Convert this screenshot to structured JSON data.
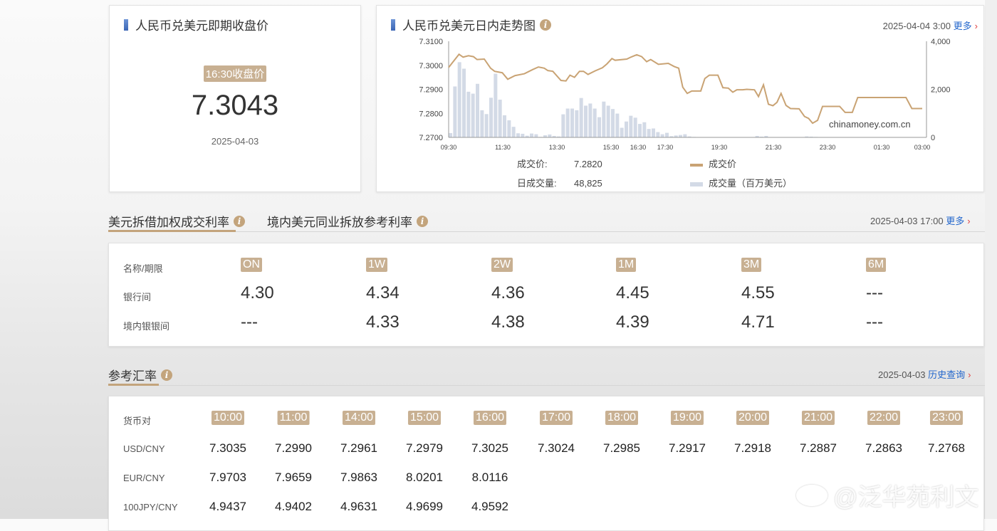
{
  "closing_card": {
    "title": "人民币兑美元即期收盘价",
    "tag": "16:30收盘价",
    "value": "7.3043",
    "date": "2025-04-03"
  },
  "intraday_card": {
    "title": "人民币兑美元日内走势图",
    "timestamp": "2025-04-04 3:00",
    "more": "更多",
    "watermark": "chinamoney.com.cn",
    "price_label": "成交价:",
    "price_value": "7.2820",
    "volume_label": "日成交量:",
    "volume_value": "48,825",
    "legend": [
      {
        "name": "成交价",
        "color": "#c9a374"
      },
      {
        "name": "成交量（百万美元）",
        "color": "#d3dae6"
      }
    ]
  },
  "chart_data": {
    "type": "line+bar",
    "y_left": {
      "ticks": [
        "7.2700",
        "7.2800",
        "7.2900",
        "7.3000",
        "7.3100"
      ],
      "range": [
        7.27,
        7.31
      ]
    },
    "y_right": {
      "ticks": [
        "0",
        "2,000",
        "4,000"
      ],
      "range": [
        0,
        4000
      ]
    },
    "x_ticks": [
      "09:30",
      "11:30",
      "13:30",
      "15:30",
      "16:30",
      "17:30",
      "19:30",
      "21:30",
      "23:30",
      "01:30",
      "03:00"
    ],
    "x_range": [
      "09:30",
      "03:00"
    ],
    "series": [
      {
        "name": "成交价",
        "type": "line",
        "color": "#c9a374",
        "points": [
          [
            "09:30",
            7.2991
          ],
          [
            "09:53",
            7.3046
          ],
          [
            "10:02",
            7.3034
          ],
          [
            "10:14",
            7.304
          ],
          [
            "10:25",
            7.3036
          ],
          [
            "10:33",
            7.3024
          ],
          [
            "10:49",
            7.3026
          ],
          [
            "11:03",
            7.2988
          ],
          [
            "11:12",
            7.2975
          ],
          [
            "11:29",
            7.2969
          ],
          [
            "11:41",
            7.2942
          ],
          [
            "11:57",
            7.2957
          ],
          [
            "12:18",
            7.2965
          ],
          [
            "12:36",
            7.2982
          ],
          [
            "12:49",
            7.2993
          ],
          [
            "13:02",
            7.2988
          ],
          [
            "13:10",
            7.2978
          ],
          [
            "13:21",
            7.2975
          ],
          [
            "13:39",
            7.2937
          ],
          [
            "13:50",
            7.2935
          ],
          [
            "13:59",
            7.2959
          ],
          [
            "14:09",
            7.295
          ],
          [
            "14:20",
            7.2975
          ],
          [
            "14:29",
            7.2975
          ],
          [
            "14:39",
            7.2962
          ],
          [
            "14:55",
            7.2977
          ],
          [
            "15:11",
            7.299
          ],
          [
            "15:21",
            7.3006
          ],
          [
            "15:32",
            7.3028
          ],
          [
            "15:39",
            7.3021
          ],
          [
            "16:05",
            7.3026
          ],
          [
            "16:14",
            7.3034
          ],
          [
            "16:27",
            7.3044
          ],
          [
            "16:38",
            7.3036
          ],
          [
            "16:49",
            7.3015
          ],
          [
            "16:58",
            7.3024
          ],
          [
            "17:15",
            7.3004
          ],
          [
            "17:37",
            7.3008
          ],
          [
            "17:50",
            7.2995
          ],
          [
            "18:00",
            7.2988
          ],
          [
            "18:09",
            7.2909
          ],
          [
            "18:19",
            7.2883
          ],
          [
            "18:29",
            7.2893
          ],
          [
            "18:49",
            7.2893
          ],
          [
            "18:58",
            7.2945
          ],
          [
            "19:08",
            7.2959
          ],
          [
            "19:27",
            7.2959
          ],
          [
            "19:38",
            7.2907
          ],
          [
            "19:50",
            7.2905
          ],
          [
            "20:00",
            7.2888
          ],
          [
            "20:09",
            7.2898
          ],
          [
            "20:22",
            7.2898
          ],
          [
            "20:31",
            7.29
          ],
          [
            "20:48",
            7.2898
          ],
          [
            "20:57",
            7.287
          ],
          [
            "21:08",
            7.2919
          ],
          [
            "21:19",
            7.2838
          ],
          [
            "21:29",
            7.2832
          ],
          [
            "21:38",
            7.2846
          ],
          [
            "21:47",
            7.2883
          ],
          [
            "21:58",
            7.2833
          ],
          [
            "22:08",
            7.282
          ],
          [
            "22:27",
            7.2819
          ],
          [
            "22:39",
            7.2787
          ],
          [
            "22:48",
            7.2779
          ],
          [
            "22:57",
            7.2759
          ],
          [
            "23:08",
            7.2771
          ],
          [
            "23:19",
            7.2829
          ],
          [
            "23:57",
            7.2829
          ],
          [
            "00:09",
            7.2804
          ],
          [
            "00:25",
            7.2804
          ],
          [
            "00:37",
            7.2866
          ],
          [
            "02:24",
            7.2866
          ],
          [
            "02:37",
            7.282
          ],
          [
            "03:00",
            7.282
          ]
        ]
      },
      {
        "name": "成交量（百万美元）",
        "type": "bar",
        "color": "#d3dae6",
        "points": [
          [
            "09:30",
            180
          ],
          [
            "09:40",
            2120
          ],
          [
            "09:50",
            3130
          ],
          [
            "10:00",
            2860
          ],
          [
            "10:10",
            1900
          ],
          [
            "10:20",
            1820
          ],
          [
            "10:30",
            2230
          ],
          [
            "10:40",
            1130
          ],
          [
            "10:50",
            970
          ],
          [
            "11:00",
            1650
          ],
          [
            "11:10",
            2650
          ],
          [
            "11:20",
            1570
          ],
          [
            "11:30",
            920
          ],
          [
            "11:40",
            710
          ],
          [
            "11:50",
            440
          ],
          [
            "12:00",
            170
          ],
          [
            "12:10",
            150
          ],
          [
            "12:20",
            70
          ],
          [
            "12:30",
            160
          ],
          [
            "12:40",
            130
          ],
          [
            "12:50",
            20
          ],
          [
            "13:00",
            90
          ],
          [
            "13:10",
            120
          ],
          [
            "13:20",
            60
          ],
          [
            "13:30",
            40
          ],
          [
            "13:40",
            960
          ],
          [
            "13:50",
            1200
          ],
          [
            "14:00",
            1200
          ],
          [
            "14:10",
            1130
          ],
          [
            "14:20",
            1640
          ],
          [
            "14:30",
            1320
          ],
          [
            "14:40",
            1410
          ],
          [
            "14:50",
            1200
          ],
          [
            "15:00",
            840
          ],
          [
            "15:10",
            1490
          ],
          [
            "15:20",
            1320
          ],
          [
            "15:30",
            1180
          ],
          [
            "15:40",
            990
          ],
          [
            "15:50",
            400
          ],
          [
            "16:00",
            660
          ],
          [
            "16:10",
            900
          ],
          [
            "16:20",
            820
          ],
          [
            "16:30",
            560
          ],
          [
            "16:40",
            630
          ],
          [
            "16:50",
            350
          ],
          [
            "17:00",
            370
          ],
          [
            "17:10",
            220
          ],
          [
            "17:20",
            130
          ],
          [
            "17:30",
            190
          ],
          [
            "17:40",
            50
          ],
          [
            "17:50",
            80
          ],
          [
            "18:00",
            100
          ],
          [
            "18:10",
            130
          ],
          [
            "18:20",
            40
          ],
          [
            "18:30",
            20
          ],
          [
            "18:50",
            10
          ],
          [
            "19:10",
            10
          ],
          [
            "19:40",
            10
          ],
          [
            "20:20",
            10
          ],
          [
            "20:50",
            60
          ],
          [
            "21:00",
            30
          ],
          [
            "21:10",
            60
          ],
          [
            "21:50",
            10
          ],
          [
            "22:20",
            10
          ],
          [
            "22:40",
            40
          ],
          [
            "22:50",
            30
          ],
          [
            "23:00",
            20
          ]
        ]
      }
    ]
  },
  "rates_section": {
    "tabs": [
      {
        "label": "美元拆借加权成交利率",
        "active": true
      },
      {
        "label": "境内美元同业拆放参考利率",
        "active": false
      }
    ],
    "timestamp": "2025-04-03 17:00",
    "more": "更多",
    "header_label": "名称/期限",
    "tenors": [
      "ON",
      "1W",
      "2W",
      "1M",
      "3M",
      "6M"
    ],
    "rows": [
      {
        "label": "银行间",
        "values": [
          "4.30",
          "4.34",
          "4.36",
          "4.45",
          "4.55",
          "---"
        ]
      },
      {
        "label": "境内银银间",
        "values": [
          "---",
          "4.33",
          "4.38",
          "4.39",
          "4.71",
          "---"
        ]
      }
    ]
  },
  "fx_section": {
    "title": "参考汇率",
    "date": "2025-04-03",
    "history": "历史查询",
    "header_label": "货币对",
    "times": [
      "10:00",
      "11:00",
      "14:00",
      "15:00",
      "16:00",
      "17:00",
      "18:00",
      "19:00",
      "20:00",
      "21:00",
      "22:00",
      "23:00"
    ],
    "rows": [
      {
        "pair": "USD/CNY",
        "values": [
          "7.3035",
          "7.2990",
          "7.2961",
          "7.2979",
          "7.3025",
          "7.3024",
          "7.2985",
          "7.2917",
          "7.2918",
          "7.2887",
          "7.2863",
          "7.2768"
        ]
      },
      {
        "pair": "EUR/CNY",
        "values": [
          "7.9703",
          "7.9659",
          "7.9863",
          "8.0201",
          "8.0116"
        ]
      },
      {
        "pair": "100JPY/CNY",
        "values": [
          "4.9437",
          "4.9402",
          "4.9631",
          "4.9699",
          "4.9592"
        ]
      }
    ]
  },
  "watermark": {
    "text": "@泛华苑利文",
    "icon": "weibo-logo-icon"
  }
}
